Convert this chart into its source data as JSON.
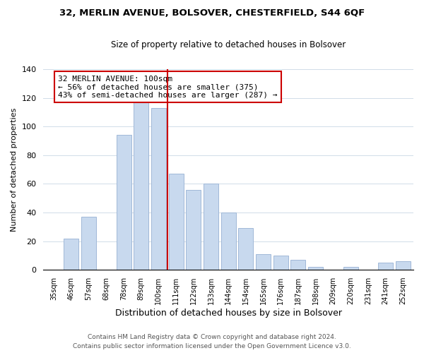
{
  "title1": "32, MERLIN AVENUE, BOLSOVER, CHESTERFIELD, S44 6QF",
  "title2": "Size of property relative to detached houses in Bolsover",
  "xlabel": "Distribution of detached houses by size in Bolsover",
  "ylabel": "Number of detached properties",
  "categories": [
    "35sqm",
    "46sqm",
    "57sqm",
    "68sqm",
    "78sqm",
    "89sqm",
    "100sqm",
    "111sqm",
    "122sqm",
    "133sqm",
    "144sqm",
    "154sqm",
    "165sqm",
    "176sqm",
    "187sqm",
    "198sqm",
    "209sqm",
    "220sqm",
    "231sqm",
    "241sqm",
    "252sqm"
  ],
  "values": [
    0,
    22,
    37,
    0,
    94,
    118,
    113,
    67,
    56,
    60,
    40,
    29,
    11,
    10,
    7,
    2,
    0,
    2,
    0,
    5,
    6
  ],
  "bar_color": "#c8d9ee",
  "bar_edge_color": "#a0b8d8",
  "highlight_index": 6,
  "highlight_line_color": "#cc0000",
  "ylim": [
    0,
    140
  ],
  "yticks": [
    0,
    20,
    40,
    60,
    80,
    100,
    120,
    140
  ],
  "annotation_title": "32 MERLIN AVENUE: 100sqm",
  "annotation_line1": "← 56% of detached houses are smaller (375)",
  "annotation_line2": "43% of semi-detached houses are larger (287) →",
  "annotation_box_color": "#ffffff",
  "annotation_box_edge": "#cc0000",
  "footer1": "Contains HM Land Registry data © Crown copyright and database right 2024.",
  "footer2": "Contains public sector information licensed under the Open Government Licence v3.0."
}
